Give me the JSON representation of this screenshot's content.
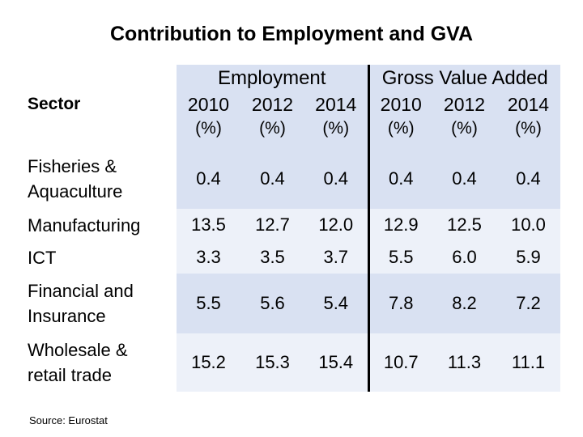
{
  "chart_data": {
    "type": "table",
    "title": "Contribution to Employment and GVA",
    "groups": [
      "Employment",
      "Gross Value Added"
    ],
    "sector_header": "Sector",
    "years": [
      "2010",
      "2012",
      "2014",
      "2010",
      "2012",
      "2014"
    ],
    "unit_label": "(%)",
    "rows": [
      {
        "sector": "Fisheries & Aquaculture",
        "sector_lines": [
          "Fisheries &",
          "Aquaculture"
        ],
        "values": [
          "0.4",
          "0.4",
          "0.4",
          "0.4",
          "0.4",
          "0.4"
        ]
      },
      {
        "sector": "Manufacturing",
        "sector_lines": [
          "Manufacturing"
        ],
        "values": [
          "13.5",
          "12.7",
          "12.0",
          "12.9",
          "12.5",
          "10.0"
        ]
      },
      {
        "sector": "ICT",
        "sector_lines": [
          "ICT"
        ],
        "values": [
          "3.3",
          "3.5",
          "3.7",
          "5.5",
          "6.0",
          "5.9"
        ]
      },
      {
        "sector": "Financial and Insurance",
        "sector_lines": [
          "Financial and",
          "Insurance"
        ],
        "values": [
          "5.5",
          "5.6",
          "5.4",
          "7.8",
          "8.2",
          "7.2"
        ]
      },
      {
        "sector": "Wholesale & retail trade",
        "sector_lines": [
          "Wholesale &",
          "retail trade"
        ],
        "values": [
          "15.2",
          "15.3",
          "15.4",
          "10.7",
          "11.3",
          "11.1"
        ]
      }
    ],
    "source": "Source: Eurostat"
  }
}
